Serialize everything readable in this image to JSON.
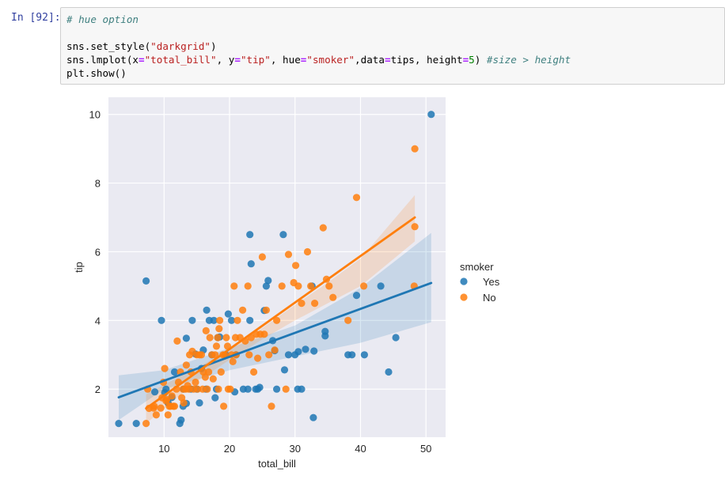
{
  "cell": {
    "prompt": "In [92]:",
    "lines": [
      [
        {
          "t": "# hue option",
          "c": "comment"
        }
      ],
      [],
      [
        {
          "t": "sns.set_style(",
          "c": ""
        },
        {
          "t": "\"darkgrid\"",
          "c": "string"
        },
        {
          "t": ")",
          "c": ""
        }
      ],
      [
        {
          "t": "sns.lmplot(x",
          "c": ""
        },
        {
          "t": "=",
          "c": "op"
        },
        {
          "t": "\"total_bill\"",
          "c": "string"
        },
        {
          "t": ", y",
          "c": ""
        },
        {
          "t": "=",
          "c": "op"
        },
        {
          "t": "\"tip\"",
          "c": "string"
        },
        {
          "t": ", hue",
          "c": ""
        },
        {
          "t": "=",
          "c": "op"
        },
        {
          "t": "\"smoker\"",
          "c": "string"
        },
        {
          "t": ",data",
          "c": ""
        },
        {
          "t": "=",
          "c": "op"
        },
        {
          "t": "tips, height",
          "c": ""
        },
        {
          "t": "=",
          "c": "op"
        },
        {
          "t": "5",
          "c": "num"
        },
        {
          "t": ") ",
          "c": ""
        },
        {
          "t": "#size > height",
          "c": "comment"
        }
      ],
      [
        {
          "t": "plt.show()",
          "c": ""
        }
      ]
    ]
  },
  "chart_data": {
    "type": "scatter",
    "xlabel": "total_bill",
    "ylabel": "tip",
    "xlim": [
      1.5,
      53
    ],
    "ylim": [
      0.6,
      10.5
    ],
    "xticks": [
      10,
      20,
      30,
      40,
      50
    ],
    "yticks": [
      2,
      4,
      6,
      8,
      10
    ],
    "grid": true,
    "legend": {
      "title": "smoker",
      "placement": "right"
    },
    "series": [
      {
        "name": "Yes",
        "color": "#1f77b4",
        "points": [
          [
            3.07,
            1.0
          ],
          [
            5.75,
            1.0
          ],
          [
            7.25,
            5.15
          ],
          [
            8.58,
            1.92
          ],
          [
            9.6,
            4.0
          ],
          [
            10.1,
            1.9
          ],
          [
            10.3,
            2.0
          ],
          [
            10.6,
            1.6
          ],
          [
            11.2,
            1.76
          ],
          [
            11.6,
            2.5
          ],
          [
            12.4,
            1.0
          ],
          [
            12.6,
            1.1
          ],
          [
            12.9,
            1.5
          ],
          [
            13.0,
            2.0
          ],
          [
            13.4,
            1.58
          ],
          [
            13.4,
            3.48
          ],
          [
            14.1,
            2.0
          ],
          [
            14.3,
            4.0
          ],
          [
            14.8,
            3.02
          ],
          [
            15.0,
            2.0
          ],
          [
            15.4,
            1.6
          ],
          [
            15.7,
            2.6
          ],
          [
            16.0,
            3.14
          ],
          [
            16.4,
            2.0
          ],
          [
            16.5,
            4.3
          ],
          [
            16.9,
            4.0
          ],
          [
            17.3,
            3.0
          ],
          [
            17.6,
            4.0
          ],
          [
            17.8,
            1.75
          ],
          [
            18.0,
            2.0
          ],
          [
            18.2,
            3.5
          ],
          [
            18.5,
            3.52
          ],
          [
            19.4,
            3.0
          ],
          [
            19.8,
            4.19
          ],
          [
            20.3,
            4.0
          ],
          [
            20.8,
            1.92
          ],
          [
            21.0,
            3.0
          ],
          [
            22.1,
            2.0
          ],
          [
            22.8,
            2.0
          ],
          [
            23.1,
            4.0
          ],
          [
            23.1,
            6.5
          ],
          [
            23.3,
            5.65
          ],
          [
            24.0,
            2.0
          ],
          [
            24.3,
            2.0
          ],
          [
            24.6,
            2.05
          ],
          [
            25.3,
            4.29
          ],
          [
            25.6,
            5.0
          ],
          [
            25.9,
            5.16
          ],
          [
            26.6,
            3.41
          ],
          [
            26.9,
            3.12
          ],
          [
            27.2,
            2.0
          ],
          [
            28.2,
            6.5
          ],
          [
            28.4,
            2.56
          ],
          [
            29.0,
            3.0
          ],
          [
            30.0,
            3.0
          ],
          [
            30.5,
            3.09
          ],
          [
            30.4,
            2.0
          ],
          [
            31.0,
            2.0
          ],
          [
            31.6,
            3.16
          ],
          [
            32.6,
            5.0
          ],
          [
            32.8,
            1.17
          ],
          [
            32.9,
            3.11
          ],
          [
            34.6,
            3.55
          ],
          [
            34.6,
            3.68
          ],
          [
            38.1,
            3.0
          ],
          [
            38.7,
            3.0
          ],
          [
            39.4,
            4.73
          ],
          [
            40.6,
            3.0
          ],
          [
            43.1,
            5.0
          ],
          [
            44.3,
            2.5
          ],
          [
            45.4,
            3.5
          ],
          [
            50.8,
            10.0
          ]
        ],
        "fit": [
          [
            3.07,
            1.76
          ],
          [
            50.8,
            5.09
          ]
        ],
        "band": {
          "x": [
            3.07,
            10,
            20,
            30,
            40,
            50.8
          ],
          "lower": [
            1.1,
            2.0,
            2.55,
            2.95,
            3.35,
            3.95
          ],
          "upper": [
            2.4,
            2.55,
            3.2,
            3.85,
            4.95,
            6.55
          ]
        }
      },
      {
        "name": "No",
        "color": "#ff7f0e",
        "points": [
          [
            7.25,
            1.0
          ],
          [
            7.5,
            2.0
          ],
          [
            7.7,
            1.44
          ],
          [
            8.4,
            1.45
          ],
          [
            8.5,
            1.5
          ],
          [
            8.8,
            1.25
          ],
          [
            9.5,
            1.45
          ],
          [
            9.7,
            1.75
          ],
          [
            9.9,
            2.2
          ],
          [
            10.1,
            2.6
          ],
          [
            10.3,
            1.66
          ],
          [
            10.4,
            1.7
          ],
          [
            10.6,
            1.25
          ],
          [
            10.8,
            1.5
          ],
          [
            11.0,
            1.5
          ],
          [
            11.2,
            1.8
          ],
          [
            11.4,
            1.5
          ],
          [
            11.6,
            1.5
          ],
          [
            11.9,
            2.0
          ],
          [
            12.0,
            3.4
          ],
          [
            12.2,
            2.2
          ],
          [
            12.5,
            2.5
          ],
          [
            12.7,
            1.75
          ],
          [
            12.9,
            2.0
          ],
          [
            13.0,
            1.6
          ],
          [
            13.3,
            2.0
          ],
          [
            13.4,
            2.7
          ],
          [
            13.6,
            2.1
          ],
          [
            13.8,
            2.0
          ],
          [
            13.9,
            3.0
          ],
          [
            14.1,
            2.5
          ],
          [
            14.3,
            3.1
          ],
          [
            14.5,
            2.0
          ],
          [
            14.8,
            2.2
          ],
          [
            15.0,
            3.0
          ],
          [
            15.1,
            2.0
          ],
          [
            15.4,
            3.0
          ],
          [
            15.7,
            3.0
          ],
          [
            15.9,
            2.0
          ],
          [
            16.0,
            2.5
          ],
          [
            16.3,
            2.35
          ],
          [
            16.4,
            3.7
          ],
          [
            16.6,
            2.0
          ],
          [
            16.8,
            2.5
          ],
          [
            17.0,
            3.5
          ],
          [
            17.3,
            3.0
          ],
          [
            17.5,
            2.3
          ],
          [
            17.8,
            3.0
          ],
          [
            18.0,
            3.25
          ],
          [
            18.2,
            3.5
          ],
          [
            18.3,
            2.0
          ],
          [
            18.4,
            3.76
          ],
          [
            18.5,
            4.0
          ],
          [
            18.7,
            2.5
          ],
          [
            19.0,
            3.0
          ],
          [
            19.1,
            1.5
          ],
          [
            19.3,
            3.0
          ],
          [
            19.5,
            3.5
          ],
          [
            19.7,
            3.25
          ],
          [
            19.8,
            2.0
          ],
          [
            20.1,
            2.0
          ],
          [
            20.3,
            3.0
          ],
          [
            20.5,
            2.8
          ],
          [
            20.7,
            5.0
          ],
          [
            20.9,
            3.5
          ],
          [
            21.0,
            3.0
          ],
          [
            21.2,
            4.0
          ],
          [
            21.6,
            3.5
          ],
          [
            22.0,
            4.3
          ],
          [
            22.4,
            3.4
          ],
          [
            22.8,
            5.0
          ],
          [
            23.0,
            3.0
          ],
          [
            23.3,
            3.5
          ],
          [
            23.7,
            2.5
          ],
          [
            24.1,
            3.6
          ],
          [
            24.3,
            2.9
          ],
          [
            24.7,
            3.6
          ],
          [
            25.0,
            5.85
          ],
          [
            25.3,
            3.6
          ],
          [
            25.6,
            4.3
          ],
          [
            26.0,
            3.0
          ],
          [
            26.4,
            1.5
          ],
          [
            26.9,
            3.14
          ],
          [
            27.2,
            4.0
          ],
          [
            28.0,
            5.0
          ],
          [
            28.6,
            2.0
          ],
          [
            29.0,
            5.92
          ],
          [
            29.8,
            5.1
          ],
          [
            30.1,
            5.6
          ],
          [
            30.5,
            5.0
          ],
          [
            31.0,
            4.5
          ],
          [
            31.9,
            6.0
          ],
          [
            32.4,
            5.0
          ],
          [
            33.0,
            4.5
          ],
          [
            34.3,
            6.7
          ],
          [
            34.8,
            5.2
          ],
          [
            35.2,
            5.0
          ],
          [
            35.8,
            4.67
          ],
          [
            38.1,
            4.0
          ],
          [
            39.4,
            7.58
          ],
          [
            40.5,
            5.0
          ],
          [
            48.2,
            5.0
          ],
          [
            48.3,
            9.0
          ],
          [
            48.3,
            6.73
          ]
        ],
        "fit": [
          [
            7.25,
            1.44
          ],
          [
            48.3,
            7.0
          ]
        ],
        "band": {
          "x": [
            7.25,
            15,
            20,
            25,
            30,
            35,
            40,
            48.3
          ],
          "lower": [
            1.0,
            2.22,
            2.85,
            3.45,
            4.0,
            4.5,
            5.0,
            6.3
          ],
          "upper": [
            1.85,
            2.62,
            3.15,
            3.78,
            4.45,
            5.1,
            5.8,
            7.65
          ]
        }
      }
    ]
  }
}
